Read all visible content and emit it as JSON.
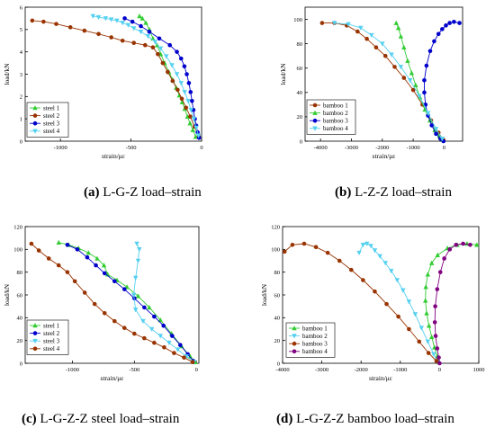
{
  "chart_data": [
    {
      "type": "line",
      "caption_letter": "(a)",
      "caption_text": " L-G-Z load–strain",
      "xlabel": "strain/με",
      "ylabel": "load/kN",
      "xlim": [
        -1250,
        0
      ],
      "ylim": [
        0,
        6
      ],
      "xticks": [
        -1000,
        -500,
        0
      ],
      "yticks": [
        0,
        1,
        2,
        3,
        4,
        5,
        6
      ],
      "legend_position": "bottom-left",
      "series": [
        {
          "name": "steel 1",
          "color": "#33cc33",
          "marker": "triangle-up",
          "x": [
            -440,
            -420,
            -395,
            -370,
            -345,
            -315,
            -290,
            -262,
            -232,
            -205,
            -180,
            -158,
            -138,
            -120,
            -100,
            -82,
            -62,
            -42
          ],
          "y": [
            5.6,
            5.5,
            5.3,
            5.0,
            4.6,
            4.3,
            3.9,
            3.5,
            3.1,
            2.75,
            2.4,
            2.05,
            1.75,
            1.45,
            1.1,
            0.8,
            0.5,
            0.2
          ]
        },
        {
          "name": "steel 2",
          "color": "#993300",
          "marker": "circle",
          "x": [
            -1200,
            -1120,
            -1030,
            -930,
            -830,
            -730,
            -640,
            -560,
            -480,
            -400,
            -345,
            -310,
            -275,
            -240,
            -205,
            -170,
            -140,
            -110,
            -80,
            -50,
            -20
          ],
          "y": [
            5.4,
            5.35,
            5.25,
            5.1,
            4.95,
            4.8,
            4.65,
            4.5,
            4.4,
            4.3,
            4.2,
            3.9,
            3.5,
            3.1,
            2.7,
            2.3,
            1.9,
            1.5,
            1.1,
            0.65,
            0.2
          ]
        },
        {
          "name": "steel 3",
          "color": "#0000cc",
          "marker": "circle",
          "x": [
            -545,
            -490,
            -430,
            -370,
            -300,
            -225,
            -175,
            -145,
            -122,
            -105,
            -90,
            -78,
            -68,
            -58,
            -48,
            -38,
            -28,
            -18
          ],
          "y": [
            5.5,
            5.35,
            5.15,
            4.9,
            4.6,
            4.3,
            4.0,
            3.7,
            3.35,
            3.0,
            2.6,
            2.2,
            1.8,
            1.4,
            1.0,
            0.7,
            0.4,
            0.15
          ]
        },
        {
          "name": "steel 4",
          "color": "#55d0f0",
          "marker": "triangle-down",
          "x": [
            -770,
            -730,
            -680,
            -640,
            -600,
            -560,
            -520,
            -480,
            -430,
            -380,
            -330,
            -290,
            -250,
            -210,
            -175,
            -145,
            -120,
            -95,
            -75,
            -55,
            -38,
            -22
          ],
          "y": [
            5.6,
            5.55,
            5.5,
            5.45,
            5.4,
            5.3,
            5.2,
            5.05,
            4.9,
            4.7,
            4.45,
            4.15,
            3.8,
            3.4,
            3.0,
            2.6,
            2.2,
            1.8,
            1.4,
            1.0,
            0.6,
            0.25
          ]
        }
      ]
    },
    {
      "type": "line",
      "caption_letter": "(b)",
      "caption_text": " L-Z-Z load–strain",
      "xlabel": "strain/με",
      "ylabel": "load/kN",
      "xlim": [
        -4500,
        600
      ],
      "ylim": [
        0,
        110
      ],
      "xticks": [
        -4000,
        -3000,
        -2000,
        -1000,
        0
      ],
      "yticks": [
        0,
        20,
        40,
        60,
        80,
        100
      ],
      "legend_position": "top-left",
      "series": [
        {
          "name": "bamboo 1",
          "color": "#993300",
          "marker": "circle",
          "x": [
            -3950,
            -3550,
            -3150,
            -2800,
            -2500,
            -2200,
            -1900,
            -1600,
            -1300,
            -1000,
            -700,
            -420,
            -180,
            -20
          ],
          "y": [
            97,
            97,
            95,
            90,
            84,
            77,
            70,
            61,
            52,
            42,
            30,
            17,
            7,
            1
          ]
        },
        {
          "name": "bamboo 2",
          "color": "#33cc33",
          "marker": "triangle-up",
          "x": [
            -1550,
            -1480,
            -1400,
            -1300,
            -1180,
            -1050,
            -920,
            -780,
            -620,
            -460,
            -300,
            -150,
            -40
          ],
          "y": [
            97,
            93,
            86,
            77,
            66,
            56,
            46,
            36,
            26,
            17,
            9,
            4,
            1
          ]
        },
        {
          "name": "bamboo 3",
          "color": "#0000cc",
          "marker": "circle",
          "x": [
            500,
            320,
            180,
            60,
            -60,
            -180,
            -320,
            -450,
            -570,
            -640,
            -640,
            -600,
            -520,
            -400,
            -260,
            -120,
            -20
          ],
          "y": [
            97,
            98,
            97,
            95,
            92,
            88,
            82,
            74,
            62,
            50,
            40,
            30,
            21,
            13,
            6,
            2,
            0
          ]
        },
        {
          "name": "bamboo 4",
          "color": "#55d0f0",
          "marker": "triangle-down",
          "x": [
            -3550,
            -3100,
            -2700,
            -2350,
            -2000,
            -1700,
            -1400,
            -1100,
            -800,
            -520,
            -260,
            -60
          ],
          "y": [
            97,
            96,
            93,
            87,
            80,
            71,
            61,
            50,
            37,
            23,
            10,
            2
          ]
        }
      ]
    },
    {
      "type": "line",
      "caption_letter": "(c)",
      "caption_text": " L-G-Z-Z steel load–strain",
      "xlabel": "strain/με",
      "ylabel": "load/kN",
      "xlim": [
        -1380,
        20
      ],
      "ylim": [
        0,
        120
      ],
      "xticks": [
        -1000,
        -500,
        0
      ],
      "yticks": [
        0,
        20,
        40,
        60,
        80,
        100,
        120
      ],
      "legend_position": "bottom-left",
      "series": [
        {
          "name": "steel 1",
          "color": "#33cc33",
          "marker": "triangle-up",
          "x": [
            -1110,
            -1030,
            -950,
            -870,
            -800,
            -745,
            -715,
            -640,
            -560,
            -470,
            -380,
            -290,
            -200,
            -120,
            -50,
            -10
          ],
          "y": [
            106,
            104,
            101,
            97,
            92,
            86,
            78,
            73,
            67,
            59,
            49,
            38,
            26,
            15,
            6,
            1
          ]
        },
        {
          "name": "steel 2",
          "color": "#0000cc",
          "marker": "circle",
          "x": [
            -1040,
            -960,
            -880,
            -810,
            -740,
            -660,
            -580,
            -500,
            -420,
            -340,
            -265,
            -195,
            -130,
            -70,
            -25
          ],
          "y": [
            104,
            100,
            93,
            86,
            79,
            72,
            65,
            57,
            49,
            41,
            33,
            24,
            16,
            8,
            2
          ]
        },
        {
          "name": "steel 3",
          "color": "#55d0f0",
          "marker": "triangle-down",
          "x": [
            -480,
            -460,
            -470,
            -490,
            -505,
            -490,
            -430,
            -360,
            -290,
            -220,
            -150,
            -80,
            -20
          ],
          "y": [
            105,
            100,
            90,
            75,
            60,
            47,
            37,
            30,
            24,
            18,
            12,
            6,
            1
          ]
        },
        {
          "name": "steel 4",
          "color": "#993300",
          "marker": "circle",
          "x": [
            -1330,
            -1270,
            -1190,
            -1110,
            -1040,
            -980,
            -900,
            -820,
            -740,
            -660,
            -580,
            -500,
            -420,
            -340,
            -260,
            -180,
            -100,
            -30
          ],
          "y": [
            105,
            99,
            92,
            86,
            80,
            72,
            62,
            52,
            44,
            37,
            31,
            26,
            22,
            18,
            14,
            9,
            5,
            1
          ]
        }
      ]
    },
    {
      "type": "line",
      "caption_letter": "(d)",
      "caption_text": " L-G-Z-Z bamboo load–strain",
      "xlabel": "strain/με",
      "ylabel": "load/kN",
      "xlim": [
        -4000,
        1000
      ],
      "ylim": [
        0,
        120
      ],
      "xticks": [
        -4000,
        -3000,
        -2000,
        -1000,
        0,
        1000
      ],
      "yticks": [
        0,
        20,
        40,
        60,
        80,
        100,
        120
      ],
      "legend_position": "bottom-left",
      "series": [
        {
          "name": "bamboo 1",
          "color": "#33cc33",
          "marker": "triangle-up",
          "x": [
            950,
            700,
            450,
            200,
            -50,
            -200,
            -300,
            -350,
            -360,
            -330,
            -270,
            -200,
            -130,
            -60,
            -10
          ],
          "y": [
            104,
            105,
            104,
            101,
            95,
            88,
            78,
            67,
            55,
            44,
            33,
            23,
            14,
            6,
            1
          ]
        },
        {
          "name": "bamboo 2",
          "color": "#55d0f0",
          "marker": "triangle-down",
          "x": [
            -2050,
            -1950,
            -1850,
            -1750,
            -1650,
            -1520,
            -1380,
            -1230,
            -1080,
            -930,
            -780,
            -620,
            -460,
            -300,
            -150,
            -40
          ],
          "y": [
            97,
            104,
            105,
            103,
            99,
            94,
            88,
            81,
            73,
            64,
            54,
            43,
            31,
            19,
            8,
            1
          ]
        },
        {
          "name": "bamboo 3",
          "color": "#993300",
          "marker": "circle",
          "x": [
            -3950,
            -3750,
            -3450,
            -3150,
            -2850,
            -2550,
            -2250,
            -1950,
            -1650,
            -1350,
            -1050,
            -780,
            -520,
            -280,
            -80
          ],
          "y": [
            98,
            104,
            105,
            102,
            97,
            90,
            82,
            73,
            63,
            52,
            41,
            30,
            19,
            9,
            2
          ]
        },
        {
          "name": "bamboo 4",
          "color": "#800080",
          "marker": "circle",
          "x": [
            780,
            600,
            420,
            260,
            120,
            20,
            -60,
            -110,
            -120,
            -100,
            -60,
            -20,
            0
          ],
          "y": [
            104,
            105,
            104,
            100,
            92,
            80,
            65,
            50,
            36,
            24,
            13,
            5,
            0
          ]
        }
      ]
    }
  ]
}
